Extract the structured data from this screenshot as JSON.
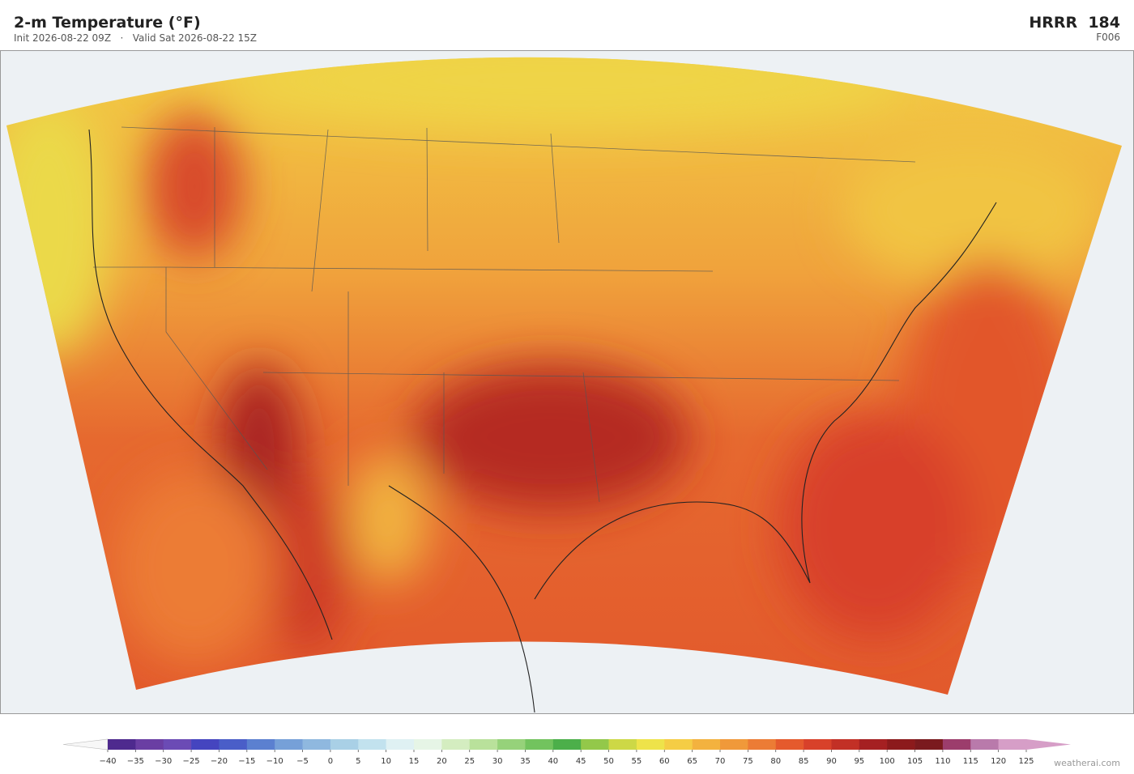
{
  "header": {
    "title": "2-m Temperature  (°F)",
    "subtitle": "Init 2026-08-22 09Z   ·   Valid Sat 2026-08-22 15Z",
    "model": "HRRR  184",
    "forecast_hour": "F006"
  },
  "colorbar": {
    "ticks": [
      {
        "value": -40,
        "label": "−40"
      },
      {
        "value": -35,
        "label": "−35"
      },
      {
        "value": -30,
        "label": "−30"
      },
      {
        "value": -25,
        "label": "−25"
      },
      {
        "value": -20,
        "label": "−20"
      },
      {
        "value": -15,
        "label": "−15"
      },
      {
        "value": -10,
        "label": "−10"
      },
      {
        "value": -5,
        "label": "−5"
      },
      0,
      5,
      10,
      15,
      20,
      25,
      30,
      35,
      40,
      45,
      50,
      55,
      60,
      65,
      70,
      75,
      80,
      85,
      90,
      95,
      100,
      105,
      110,
      115,
      120,
      125
    ],
    "colors": [
      "#4e2a8e",
      "#6a3ea3",
      "#6b4bb5",
      "#4545bf",
      "#4a5ec8",
      "#5b80d0",
      "#76a0d8",
      "#8fb8df",
      "#a9d0e6",
      "#c2e2ee",
      "#dff1f3",
      "#e6f5e6",
      "#d4edc0",
      "#b9e19b",
      "#96d27a",
      "#72c35e",
      "#4caf4a",
      "#93c84a",
      "#cdd846",
      "#eee34a",
      "#f5cd45",
      "#f3b23f",
      "#f0993a",
      "#ec7c35",
      "#e55a2d",
      "#d8412a",
      "#c23026",
      "#a52022",
      "#8c1a1c",
      "#7a1a1e",
      "#9c3d6c",
      "#b97aab",
      "#d69ec7"
    ],
    "under_color": "#f7f7f7",
    "over_color": "#d69ec7"
  },
  "footer": {
    "credit": "weatherai.com"
  }
}
